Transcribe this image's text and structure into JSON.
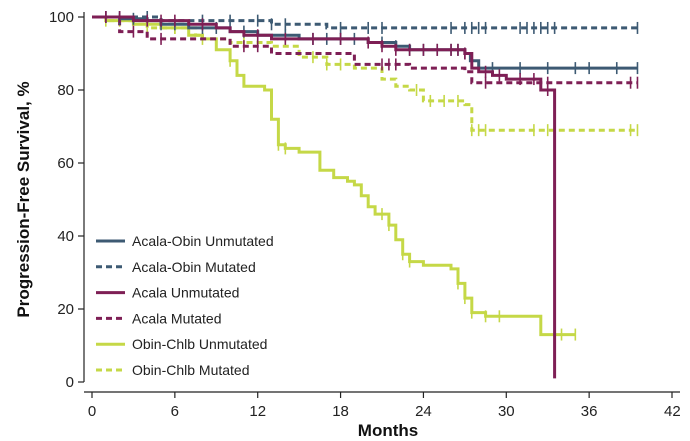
{
  "chart_data": {
    "type": "line",
    "subtype": "kaplan-meier",
    "title": "",
    "xlabel": "Months",
    "ylabel": "Progression-Free Survival, %",
    "xlim": [
      0,
      42
    ],
    "ylim": [
      0,
      100
    ],
    "xticks": [
      0,
      6,
      12,
      18,
      24,
      30,
      36,
      42
    ],
    "yticks": [
      0,
      20,
      40,
      60,
      80,
      100
    ],
    "xtick_labels": [
      "0",
      "6",
      "12",
      "18",
      "24",
      "30",
      "36",
      "42"
    ],
    "ytick_labels": [
      "0",
      "20",
      "40",
      "60",
      "80",
      "100"
    ],
    "grid": false,
    "legend_position": "bottom-left",
    "series": [
      {
        "name": "Acala-Obin Unmutated",
        "color": "#3d5a73",
        "dash": "solid",
        "points": [
          [
            0,
            100
          ],
          [
            2,
            99.5
          ],
          [
            4,
            99
          ],
          [
            5,
            98
          ],
          [
            7,
            97
          ],
          [
            10,
            96
          ],
          [
            12,
            95
          ],
          [
            15,
            94
          ],
          [
            19,
            94
          ],
          [
            20,
            93
          ],
          [
            22,
            92
          ],
          [
            23,
            91
          ],
          [
            27,
            90
          ],
          [
            27.4,
            88
          ],
          [
            28,
            86
          ],
          [
            39.5,
            86
          ]
        ],
        "censors": [
          1,
          2,
          3,
          5,
          6,
          8,
          9,
          11,
          14,
          16,
          17,
          18,
          19,
          21,
          22,
          23,
          24,
          25,
          26,
          26.5,
          27,
          29,
          31,
          33,
          35,
          36,
          38,
          39.5
        ]
      },
      {
        "name": "Acala-Obin Mutated",
        "color": "#3d5a73",
        "dash": "dashed",
        "points": [
          [
            0,
            100
          ],
          [
            3,
            100
          ],
          [
            5,
            99
          ],
          [
            13,
            98
          ],
          [
            17,
            97
          ],
          [
            39.5,
            97
          ]
        ],
        "censors": [
          1,
          2,
          4,
          8,
          10,
          12,
          13,
          14,
          18,
          20,
          21,
          26,
          27,
          27.5,
          28,
          28.5,
          31,
          31.5,
          32,
          32.5,
          33,
          33.5,
          39.5
        ]
      },
      {
        "name": "Acala Unmutated",
        "color": "#7e1f55",
        "dash": "solid",
        "points": [
          [
            0,
            100
          ],
          [
            3,
            99
          ],
          [
            7,
            98
          ],
          [
            9,
            97
          ],
          [
            10,
            96
          ],
          [
            11,
            95
          ],
          [
            13,
            94
          ],
          [
            20,
            93
          ],
          [
            21,
            92
          ],
          [
            22,
            91
          ],
          [
            27,
            90
          ],
          [
            27.5,
            86
          ],
          [
            28,
            85
          ],
          [
            29,
            84
          ],
          [
            30,
            83
          ],
          [
            32.5,
            80
          ],
          [
            33.5,
            80
          ],
          [
            33.5,
            1
          ]
        ],
        "censors": [
          1,
          2,
          4,
          5,
          6,
          8,
          12,
          14,
          16,
          18,
          20,
          21,
          22,
          23,
          24,
          25,
          26,
          26.5,
          27,
          28.5,
          29.5,
          31,
          32,
          33
        ]
      },
      {
        "name": "Acala Mutated",
        "color": "#7e1f55",
        "dash": "dashed",
        "points": [
          [
            0,
            100
          ],
          [
            2,
            96
          ],
          [
            4,
            94
          ],
          [
            10,
            92
          ],
          [
            13,
            90
          ],
          [
            19,
            87
          ],
          [
            23,
            86
          ],
          [
            27,
            85
          ],
          [
            27.5,
            82
          ],
          [
            39.5,
            82
          ]
        ],
        "censors": [
          1,
          3,
          5,
          11,
          12,
          21,
          21.5,
          22,
          28.5,
          33,
          39,
          39.5
        ]
      },
      {
        "name": "Obin-Chlb Unmutated",
        "color": "#c5d847",
        "dash": "solid",
        "points": [
          [
            0,
            100
          ],
          [
            1,
            99
          ],
          [
            3,
            98
          ],
          [
            5,
            97
          ],
          [
            7,
            95
          ],
          [
            8,
            94
          ],
          [
            9,
            91
          ],
          [
            10,
            88
          ],
          [
            10.5,
            84
          ],
          [
            11,
            81
          ],
          [
            12.5,
            80
          ],
          [
            13,
            72
          ],
          [
            13.5,
            65
          ],
          [
            14,
            64
          ],
          [
            15,
            63
          ],
          [
            16.5,
            58
          ],
          [
            17.5,
            56
          ],
          [
            18.5,
            55
          ],
          [
            19,
            54
          ],
          [
            19.5,
            51
          ],
          [
            20,
            48
          ],
          [
            20.5,
            46
          ],
          [
            21.5,
            43
          ],
          [
            22,
            39
          ],
          [
            22.5,
            35
          ],
          [
            23,
            33
          ],
          [
            24,
            32
          ],
          [
            26,
            31
          ],
          [
            26.5,
            27
          ],
          [
            27,
            23
          ],
          [
            27.5,
            19
          ],
          [
            28.5,
            18
          ],
          [
            31,
            18
          ],
          [
            32.5,
            13
          ],
          [
            35,
            13
          ]
        ],
        "censors": [
          1,
          4,
          6,
          10,
          13.5,
          14,
          21,
          21.5,
          22.5,
          23,
          26.5,
          27,
          27.5,
          28.5,
          29.5,
          34,
          35
        ]
      },
      {
        "name": "Obin-Chlb Mutated",
        "color": "#c5d847",
        "dash": "dashed",
        "points": [
          [
            0,
            100
          ],
          [
            1,
            99
          ],
          [
            4,
            97
          ],
          [
            7.5,
            95
          ],
          [
            8,
            94
          ],
          [
            10,
            93
          ],
          [
            13,
            92
          ],
          [
            15,
            89
          ],
          [
            17,
            87
          ],
          [
            19,
            86
          ],
          [
            21,
            83
          ],
          [
            22,
            81
          ],
          [
            23,
            80
          ],
          [
            24,
            77
          ],
          [
            27,
            76
          ],
          [
            27.5,
            69
          ],
          [
            39.5,
            69
          ]
        ],
        "censors": [
          2,
          4,
          6,
          8,
          11,
          12,
          16,
          17,
          18,
          23.5,
          24.5,
          25.5,
          26.5,
          27.5,
          28,
          28.5,
          32,
          33,
          33.5,
          39,
          39.5
        ]
      }
    ]
  }
}
